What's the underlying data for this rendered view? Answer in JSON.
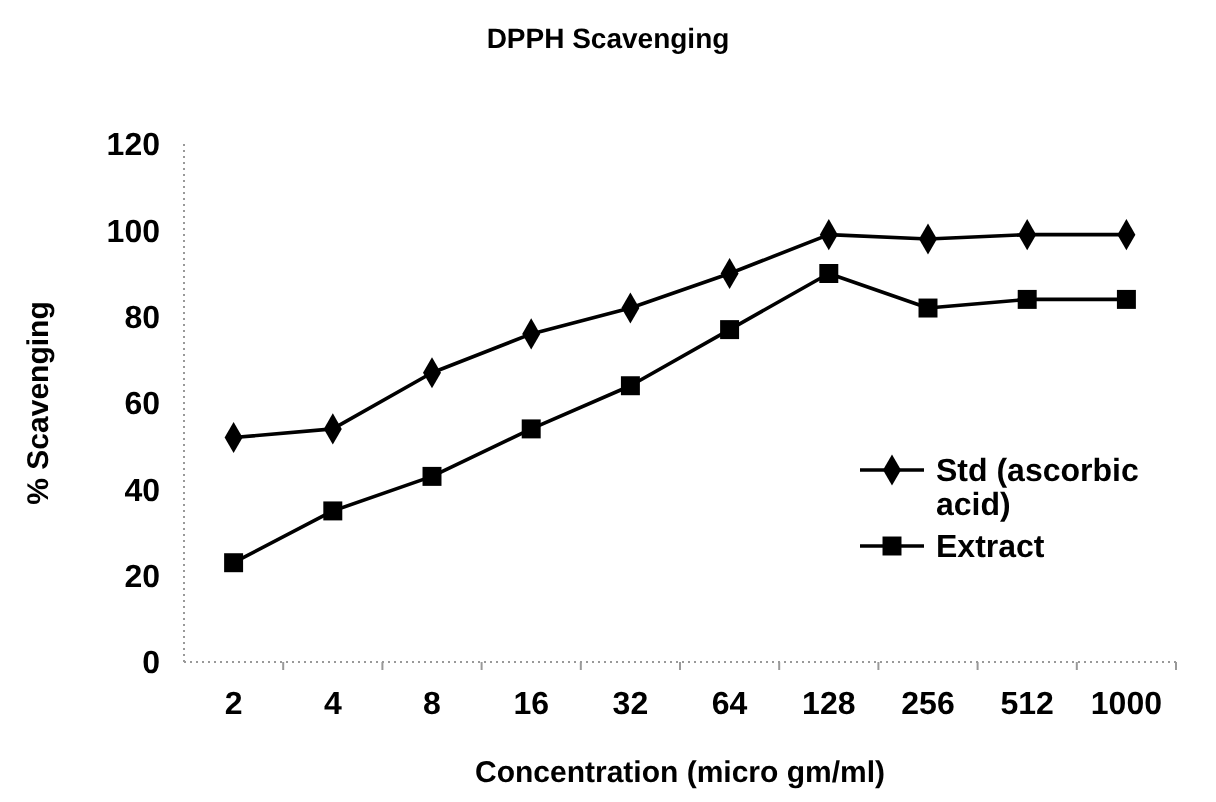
{
  "chart_data": {
    "type": "line",
    "title": "DPPH Scavenging",
    "xlabel": "Concentration (micro gm/ml)",
    "ylabel": "% Scavenging",
    "categories": [
      "2",
      "4",
      "8",
      "16",
      "32",
      "64",
      "128",
      "256",
      "512",
      "1000"
    ],
    "series": [
      {
        "name": "Std (ascorbic acid)",
        "color": "#000000",
        "marker": "diamond",
        "values": [
          52,
          54,
          67,
          76,
          82,
          90,
          99,
          98,
          99,
          99
        ]
      },
      {
        "name": "Extract",
        "color": "#000000",
        "marker": "square",
        "values": [
          23,
          35,
          43,
          54,
          64,
          77,
          90,
          82,
          84,
          84
        ]
      }
    ],
    "ylim": [
      0,
      120
    ],
    "yticks": [
      0,
      20,
      40,
      60,
      80,
      100,
      120
    ],
    "legend": "right",
    "line_style": "solid"
  }
}
